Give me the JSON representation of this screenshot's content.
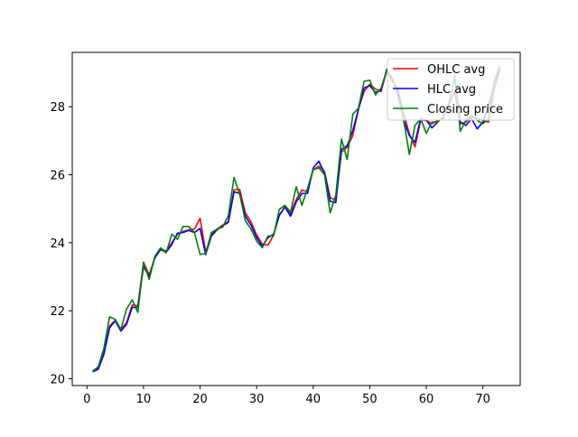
{
  "chart_data": {
    "type": "line",
    "title": "",
    "xlabel": "",
    "ylabel": "",
    "xlim": [
      -2.6,
      76.6
    ],
    "ylim": [
      19.8,
      29.6
    ],
    "xticks": [
      0,
      10,
      20,
      30,
      40,
      50,
      60,
      70
    ],
    "yticks": [
      20,
      22,
      24,
      26,
      28
    ],
    "xtick_labels": [
      "0",
      "10",
      "20",
      "30",
      "40",
      "50",
      "60",
      "70"
    ],
    "ytick_labels": [
      "20",
      "22",
      "24",
      "26",
      "28"
    ],
    "grid": false,
    "legend": {
      "position": "top-right"
    },
    "x": [
      1,
      2,
      3,
      4,
      5,
      6,
      7,
      8,
      9,
      10,
      11,
      12,
      13,
      14,
      15,
      16,
      17,
      18,
      19,
      20,
      21,
      22,
      23,
      24,
      25,
      26,
      27,
      28,
      29,
      30,
      31,
      32,
      33,
      34,
      35,
      36,
      37,
      38,
      39,
      40,
      41,
      42,
      43,
      44,
      45,
      46,
      47,
      48,
      49,
      50,
      51,
      52,
      53,
      54,
      55,
      56,
      57,
      58,
      59,
      60,
      61,
      62,
      63,
      64,
      65,
      66,
      67,
      68,
      69,
      70,
      71,
      72,
      73
    ],
    "series": [
      {
        "name": "OHLC avg",
        "color": "#ff0000",
        "values": [
          20.23,
          20.3,
          20.76,
          21.55,
          21.72,
          21.45,
          21.65,
          22.17,
          22.15,
          23.43,
          23.05,
          23.57,
          23.83,
          23.75,
          24.0,
          24.25,
          24.33,
          24.38,
          24.4,
          24.72,
          23.72,
          24.25,
          24.4,
          24.52,
          24.62,
          25.56,
          25.57,
          24.88,
          24.62,
          24.23,
          23.96,
          23.93,
          24.22,
          24.82,
          25.05,
          24.85,
          25.27,
          25.55,
          25.5,
          26.15,
          26.25,
          26.1,
          25.33,
          25.25,
          26.67,
          26.8,
          27.15,
          27.93,
          28.45,
          28.66,
          28.52,
          28.45,
          29.06,
          28.75,
          28.5,
          27.8,
          27.2,
          26.82,
          27.6,
          27.6,
          27.5,
          27.6,
          27.65,
          28.05,
          28.45,
          27.5,
          27.55,
          27.7,
          27.65,
          27.6,
          27.55,
          28.5,
          29.1
        ]
      },
      {
        "name": "HLC avg",
        "color": "#0000ff",
        "values": [
          20.2,
          20.28,
          20.72,
          21.5,
          21.7,
          21.4,
          21.6,
          22.1,
          22.1,
          23.3,
          23.0,
          23.55,
          23.8,
          23.72,
          23.95,
          24.28,
          24.3,
          24.36,
          24.3,
          24.42,
          23.65,
          24.2,
          24.38,
          24.5,
          24.6,
          25.5,
          25.45,
          24.78,
          24.52,
          24.15,
          23.9,
          24.15,
          24.25,
          24.8,
          25.05,
          24.78,
          25.2,
          25.45,
          25.45,
          26.2,
          26.4,
          26.05,
          25.22,
          25.18,
          26.75,
          26.85,
          27.3,
          27.92,
          28.55,
          28.62,
          28.42,
          28.48,
          29.1,
          28.8,
          28.45,
          27.6,
          27.15,
          26.95,
          27.65,
          27.6,
          27.38,
          27.55,
          27.7,
          28.1,
          28.9,
          27.55,
          27.45,
          27.65,
          27.35,
          27.55,
          28.0,
          28.7,
          29.15
        ]
      },
      {
        "name": "Closing price",
        "color": "#008000",
        "values": [
          20.22,
          20.35,
          20.9,
          21.82,
          21.75,
          21.45,
          22.05,
          22.32,
          21.95,
          23.42,
          22.92,
          23.6,
          23.85,
          23.7,
          24.25,
          24.1,
          24.48,
          24.48,
          24.3,
          23.66,
          23.68,
          24.3,
          24.4,
          24.46,
          24.8,
          25.92,
          25.42,
          24.65,
          24.4,
          24.05,
          23.85,
          24.2,
          24.2,
          24.98,
          25.1,
          24.9,
          25.65,
          25.1,
          25.6,
          26.15,
          26.2,
          26.0,
          24.88,
          25.4,
          27.05,
          26.45,
          27.78,
          27.96,
          28.75,
          28.78,
          28.35,
          28.55,
          29.05,
          28.85,
          28.3,
          27.6,
          26.6,
          27.45,
          27.65,
          27.22,
          27.55,
          27.55,
          27.7,
          28.05,
          28.9,
          27.28,
          27.6,
          27.75,
          27.6,
          27.5,
          27.65,
          28.75,
          29.2
        ]
      }
    ]
  }
}
